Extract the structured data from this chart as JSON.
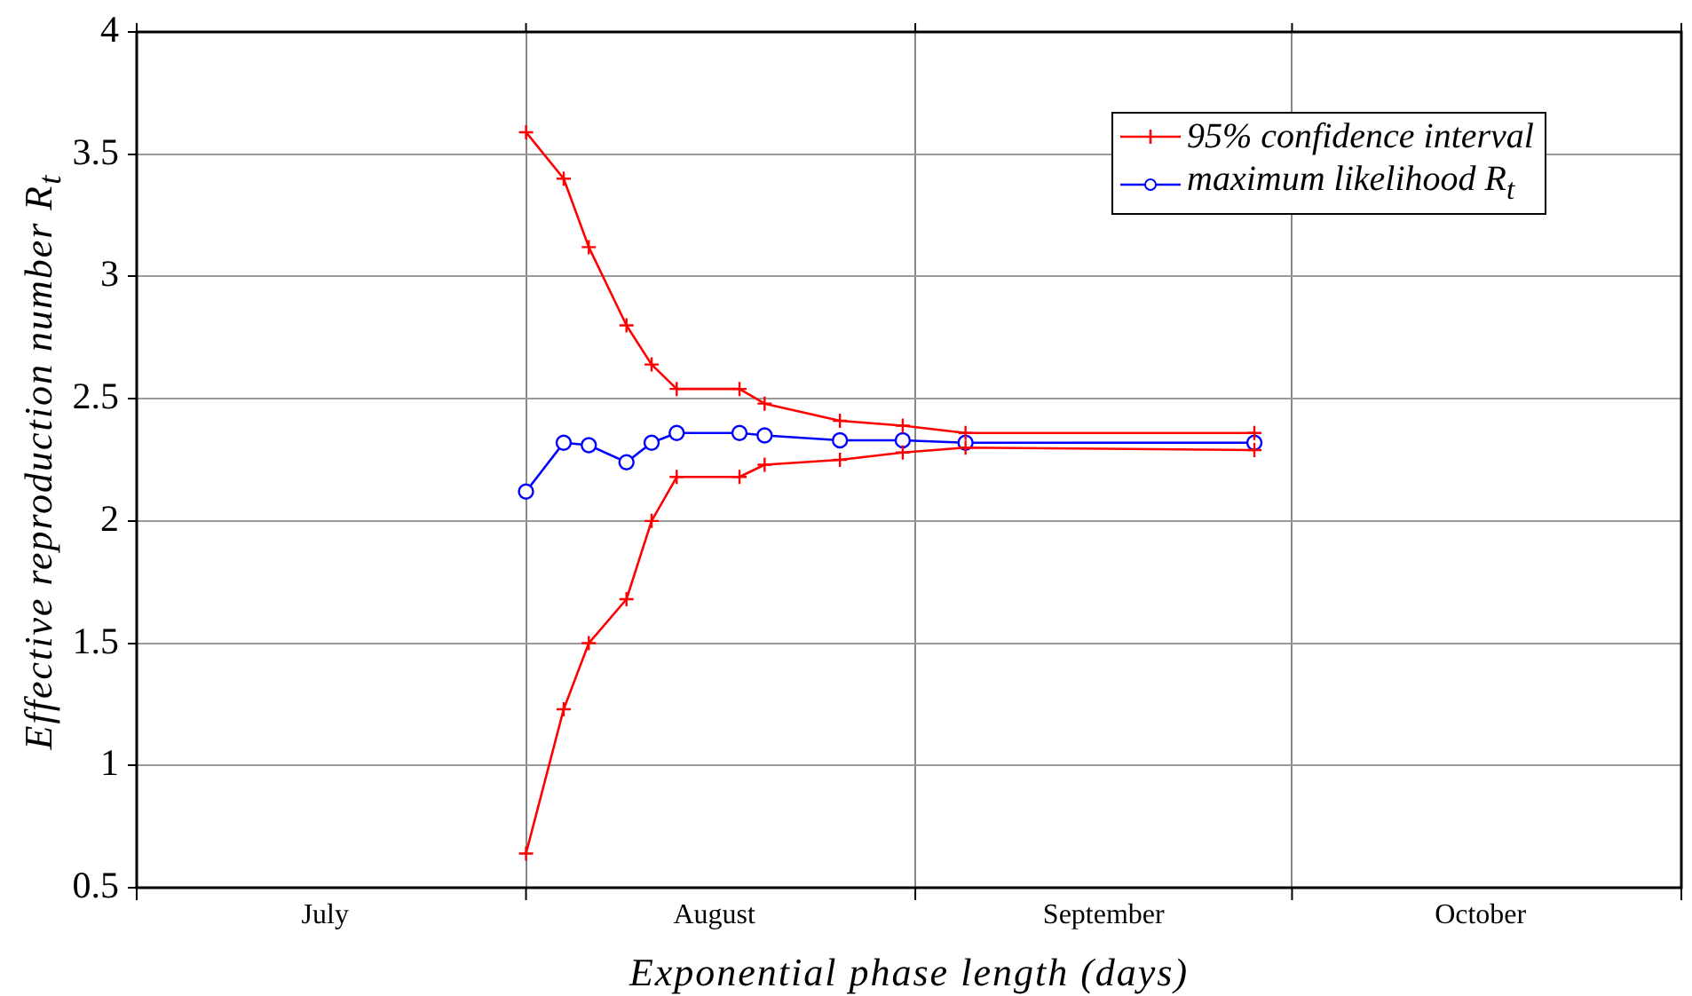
{
  "chart_data": {
    "type": "line",
    "xlabel": "Exponential phase length (days)",
    "ylabel": "Effective reproduction number R$_{t}$",
    "xlim": [
      "--07-01",
      "--11-01"
    ],
    "xticks": [
      {
        "value": "--07-01",
        "label": null
      },
      {
        "value": "--07-16",
        "label": "July"
      },
      {
        "value": "--08-01",
        "label": null
      },
      {
        "value": "--08-16",
        "label": "August"
      },
      {
        "value": "--09-01",
        "label": null
      },
      {
        "value": "--09-16",
        "label": "September"
      },
      {
        "value": "--10-01",
        "label": null
      },
      {
        "value": "--10-16",
        "label": "October"
      },
      {
        "value": "--11-01",
        "label": null
      }
    ],
    "ylim": [
      0.5,
      4
    ],
    "yticks": [
      0.5,
      1,
      1.5,
      2,
      2.5,
      3,
      3.5,
      4
    ],
    "grid": true,
    "legend": "top right",
    "x": [
      "--08-01",
      "--08-04",
      "--08-06",
      "--08-09",
      "--08-11",
      "--08-13",
      "--08-18",
      "--08-20",
      "--08-26",
      "--08-31",
      "--09-05",
      "--09-28"
    ],
    "series": [
      {
        "name": "95% confidence interval",
        "color": "#ff0000",
        "marker": "cross",
        "values": [
          3.59,
          3.4,
          3.12,
          2.8,
          2.64,
          2.54,
          2.54,
          2.48,
          2.41,
          2.39,
          2.36,
          2.36
        ]
      },
      {
        "color": "#ff0000",
        "marker": "cross",
        "values": [
          0.64,
          1.23,
          1.5,
          1.68,
          2.0,
          2.18,
          2.18,
          2.23,
          2.25,
          2.28,
          2.3,
          2.29
        ]
      },
      {
        "name": "maximum likelihood R$_{t}$",
        "color": "#0000ff",
        "marker": "circle",
        "values": [
          2.12,
          2.32,
          2.31,
          2.24,
          2.32,
          2.36,
          2.36,
          2.35,
          2.33,
          2.33,
          2.32,
          2.32
        ]
      }
    ]
  }
}
